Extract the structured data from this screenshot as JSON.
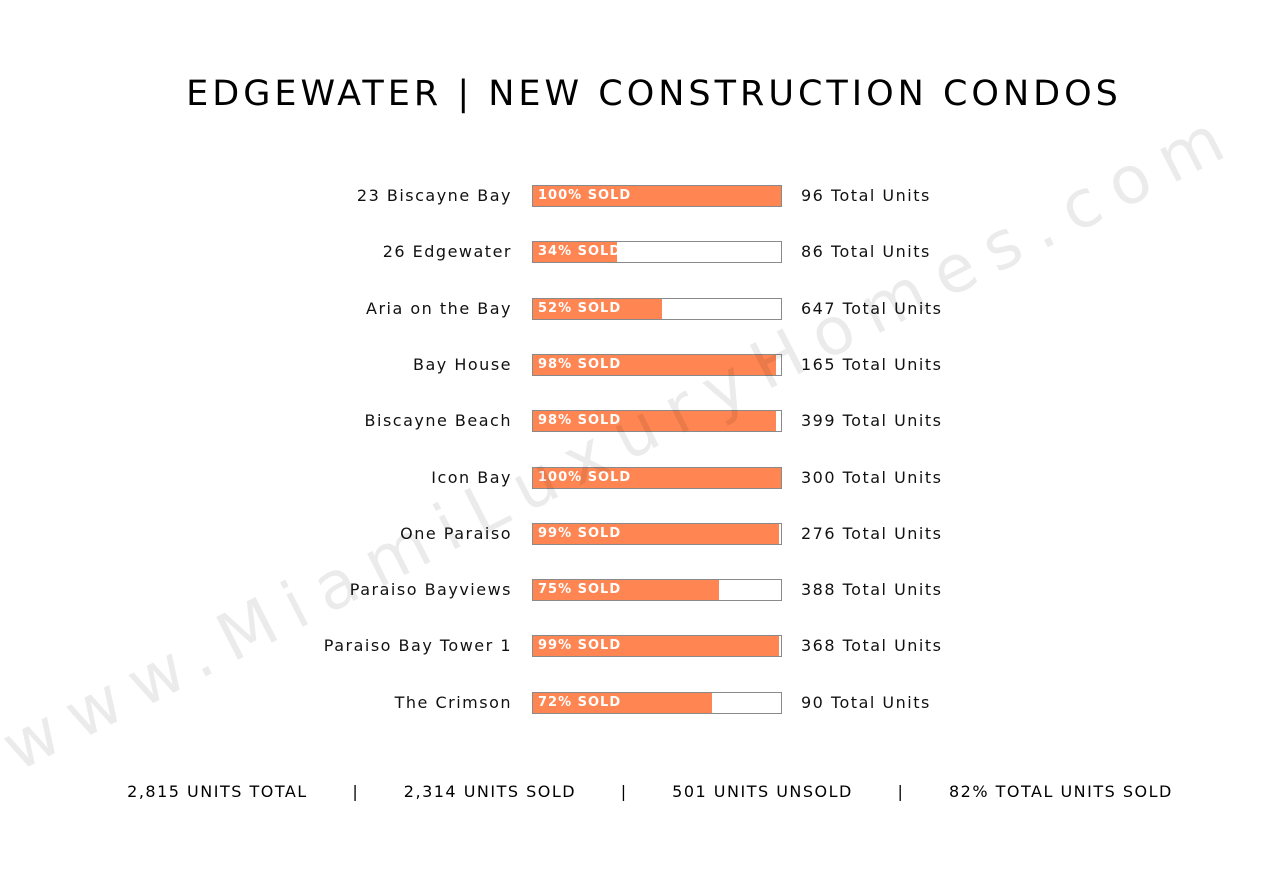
{
  "chart_data": {
    "type": "bar",
    "title": "EDGEWATER | NEW CONSTRUCTION CONDOS",
    "categories": [
      "23 Biscayne Bay",
      "26 Edgewater",
      "Aria on the Bay",
      "Bay House",
      "Biscayne Beach",
      "Icon Bay",
      "One Paraiso",
      "Paraiso Bayviews",
      "Paraiso Bay Tower 1",
      "The Crimson"
    ],
    "series": [
      {
        "values": [
          100,
          34,
          52,
          98,
          98,
          100,
          99,
          75,
          99,
          72
        ],
        "labels": [
          "100% SOLD",
          "34% SOLD",
          "52% SOLD",
          "98% SOLD",
          "98% SOLD",
          "100% SOLD",
          "99% SOLD",
          "75% SOLD",
          "99% SOLD",
          "72% SOLD"
        ]
      }
    ],
    "total_units": [
      96,
      86,
      647,
      165,
      399,
      300,
      276,
      388,
      368,
      90
    ],
    "total_units_labels": [
      "96 Total Units",
      "86 Total Units",
      "647 Total Units",
      "165 Total Units",
      "399 Total Units",
      "300 Total Units",
      "276 Total Units",
      "388 Total Units",
      "368 Total Units",
      "90 Total Units"
    ],
    "xlim": [
      0,
      100
    ],
    "grid": false,
    "colors": {
      "fill": "#ff8552",
      "track": "#ffffff",
      "border": "#8a8a8a"
    }
  },
  "summary": {
    "total": "2,815 UNITS TOTAL",
    "sold": "2,314 UNITS SOLD",
    "unsold": "501 UNITS UNSOLD",
    "percent": "82% TOTAL UNITS SOLD",
    "separator": "|"
  },
  "watermark": "www.MiamiLuxuryHomes.com"
}
